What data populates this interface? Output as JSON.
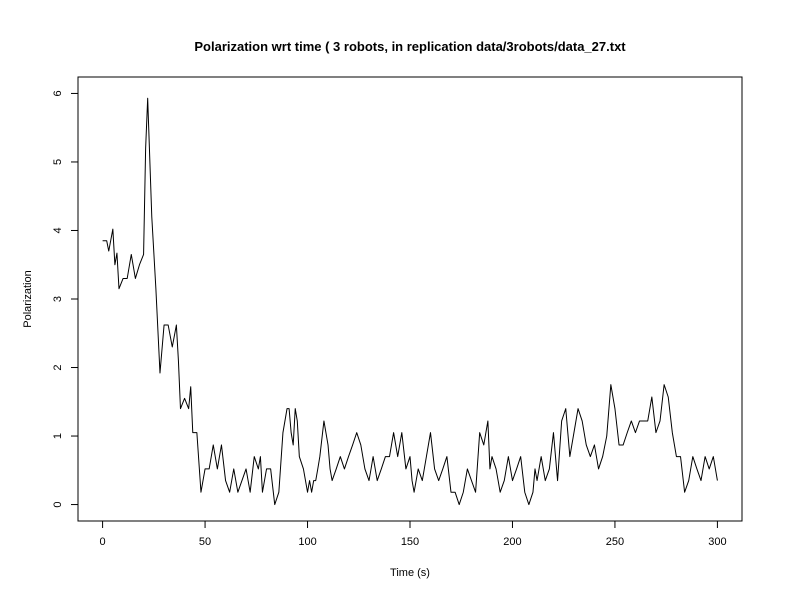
{
  "chart_data": {
    "type": "line",
    "title": "Polarization wrt time ( 3 robots, in replication  data/3robots/data_27.txt",
    "xlabel": "Time (s)",
    "ylabel": "Polarization",
    "xlim": [
      -12,
      312
    ],
    "ylim": [
      -0.24,
      6.24
    ],
    "xticks": [
      0,
      50,
      100,
      150,
      200,
      250,
      300
    ],
    "yticks": [
      0,
      1,
      2,
      3,
      4,
      5,
      6
    ],
    "grid": false,
    "legend": "none",
    "line_color": "#000000",
    "series": [
      {
        "x": [
          0,
          2,
          3,
          5,
          6,
          7,
          8,
          10,
          12,
          14,
          16,
          18,
          20,
          21,
          22,
          24,
          26,
          28,
          30,
          32,
          34,
          36,
          37,
          38,
          40,
          42,
          43,
          44,
          46,
          48,
          50,
          52,
          54,
          56,
          58,
          60,
          62,
          64,
          66,
          68,
          70,
          72,
          74,
          76,
          77,
          78,
          80,
          82,
          84,
          86,
          88,
          90,
          91,
          92,
          93,
          94,
          95,
          96,
          98,
          100,
          101,
          102,
          103,
          104,
          105,
          106,
          108,
          110,
          111,
          112,
          114,
          116,
          118,
          120,
          122,
          124,
          126,
          128,
          130,
          131,
          132,
          134,
          136,
          138,
          140,
          142,
          144,
          146,
          148,
          150,
          151,
          152,
          154,
          156,
          158,
          160,
          162,
          164,
          166,
          168,
          170,
          172,
          174,
          176,
          178,
          180,
          182,
          184,
          186,
          188,
          189,
          190,
          192,
          194,
          196,
          198,
          200,
          202,
          204,
          206,
          208,
          210,
          211,
          212,
          214,
          216,
          218,
          220,
          222,
          224,
          226,
          228,
          230,
          232,
          234,
          236,
          238,
          240,
          242,
          244,
          246,
          248,
          250,
          252,
          254,
          256,
          258,
          260,
          262,
          264,
          266,
          268,
          270,
          272,
          274,
          276,
          278,
          280,
          282,
          284,
          286,
          288,
          290,
          292,
          294,
          296,
          298,
          300
        ],
        "values": [
          3.85,
          3.85,
          3.7,
          4.02,
          3.5,
          3.67,
          3.15,
          3.3,
          3.3,
          3.65,
          3.3,
          3.5,
          3.65,
          5.2,
          5.93,
          4.2,
          3.15,
          1.92,
          2.62,
          2.62,
          2.3,
          2.62,
          2.1,
          1.4,
          1.55,
          1.4,
          1.72,
          1.05,
          1.05,
          0.18,
          0.52,
          0.52,
          0.87,
          0.52,
          0.87,
          0.35,
          0.18,
          0.52,
          0.18,
          0.35,
          0.52,
          0.18,
          0.7,
          0.52,
          0.7,
          0.18,
          0.52,
          0.52,
          0.0,
          0.18,
          1.05,
          1.4,
          1.4,
          1.05,
          0.87,
          1.4,
          1.22,
          0.7,
          0.52,
          0.18,
          0.35,
          0.18,
          0.35,
          0.35,
          0.52,
          0.7,
          1.22,
          0.87,
          0.52,
          0.35,
          0.52,
          0.7,
          0.52,
          0.7,
          0.87,
          1.05,
          0.87,
          0.52,
          0.35,
          0.52,
          0.7,
          0.35,
          0.52,
          0.7,
          0.7,
          1.05,
          0.7,
          1.05,
          0.52,
          0.7,
          0.35,
          0.18,
          0.52,
          0.35,
          0.7,
          1.05,
          0.52,
          0.35,
          0.52,
          0.7,
          0.18,
          0.18,
          0.0,
          0.18,
          0.52,
          0.35,
          0.18,
          1.05,
          0.87,
          1.22,
          0.52,
          0.7,
          0.52,
          0.18,
          0.35,
          0.7,
          0.35,
          0.52,
          0.7,
          0.18,
          0.0,
          0.18,
          0.52,
          0.35,
          0.7,
          0.35,
          0.52,
          1.05,
          0.35,
          1.22,
          1.4,
          0.7,
          1.05,
          1.4,
          1.22,
          0.87,
          0.7,
          0.87,
          0.52,
          0.7,
          1.0,
          1.75,
          1.4,
          0.87,
          0.87,
          1.05,
          1.22,
          1.05,
          1.22,
          1.22,
          1.22,
          1.57,
          1.05,
          1.22,
          1.75,
          1.57,
          1.05,
          0.7,
          0.7,
          0.18,
          0.35,
          0.7,
          0.52,
          0.35,
          0.7,
          0.52,
          0.7,
          0.35
        ]
      }
    ]
  }
}
